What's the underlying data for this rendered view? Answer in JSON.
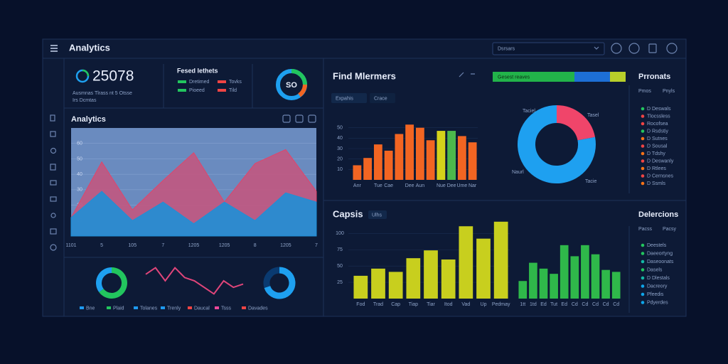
{
  "header": {
    "title": "Analytics",
    "search": "Dsrsars"
  },
  "kpi": {
    "value": "25078",
    "caption": "Ausmnas Tlrass nt 5 Otsse",
    "caption2": "Irs Dcmtas"
  },
  "summary": {
    "title": "Fesed lethets",
    "ring_label": "SO",
    "items": [
      {
        "label": "Dretimed",
        "color": "#22c55e"
      },
      {
        "label": "Tovks",
        "color": "#ef4444"
      },
      {
        "label": "Pioeed",
        "color": "#22c55e"
      },
      {
        "label": "Tild",
        "color": "#ef4444"
      }
    ]
  },
  "tabs": {
    "orange": [
      "Expahis",
      "Crace"
    ],
    "yellow": [
      "Ulhs"
    ],
    "progress": "Gesest reaves"
  },
  "lists": [
    {
      "title": "Prronats",
      "head": [
        "Pmos",
        "Pnyls"
      ],
      "items": [
        {
          "label": "D Deswals",
          "color": "#22c55e"
        },
        {
          "label": "Tlocssless",
          "color": "#ef4444"
        },
        {
          "label": "Rocofsea",
          "color": "#ef4444"
        },
        {
          "label": "D Rsdstiy",
          "color": "#22c55e"
        },
        {
          "label": "D Sutnes",
          "color": "#f97316"
        },
        {
          "label": "D Sousal",
          "color": "#ef4444"
        },
        {
          "label": "D Tdshy",
          "color": "#f97316"
        },
        {
          "label": "D Deswanly",
          "color": "#ef4444"
        },
        {
          "label": "D Rtlees",
          "color": "#f97316"
        },
        {
          "label": "D Cernsnes",
          "color": "#ef4444"
        },
        {
          "label": "D Ssmls",
          "color": "#f97316"
        }
      ]
    },
    {
      "title": "Delercions",
      "head": [
        "Pacss",
        "Pacsy"
      ],
      "items": [
        {
          "label": "Deestels",
          "color": "#22c55e"
        },
        {
          "label": "Daeeortyng",
          "color": "#22c55e"
        },
        {
          "label": "Daseoonats",
          "color": "#14b8a6"
        },
        {
          "label": "Dasels",
          "color": "#22c55e"
        },
        {
          "label": "D Dlestals",
          "color": "#14b8a6"
        },
        {
          "label": "Dacreory",
          "color": "#0ea5e9"
        },
        {
          "label": "Pfeedis",
          "color": "#0ea5e9"
        },
        {
          "label": "Pdyerdes",
          "color": "#0ea5e9"
        }
      ]
    }
  ],
  "mini_legend": [
    {
      "label": "Bne",
      "color": "#1e9af0"
    },
    {
      "label": "Plaid",
      "color": "#22c55e"
    },
    {
      "label": "Tolanes",
      "color": "#1e9af0"
    },
    {
      "label": "Trenly",
      "color": "#1e9af0"
    },
    {
      "label": "Daucal",
      "color": "#ef4444"
    },
    {
      "label": "Tsss",
      "color": "#ec4899"
    },
    {
      "label": "Davades",
      "color": "#ef4444"
    }
  ],
  "chart_data": [
    {
      "type": "area",
      "title": "Analytics",
      "categories": [
        "1101",
        "5",
        "105",
        "7",
        "1205",
        "1205",
        "8",
        "1205",
        "7"
      ],
      "series": [
        {
          "color": "#c2577f",
          "values": [
            12,
            48,
            17,
            36,
            54,
            22,
            47,
            56,
            29
          ]
        },
        {
          "color": "#1f8fd6",
          "values": [
            12,
            29,
            10,
            22,
            8,
            22,
            10,
            28,
            22
          ]
        }
      ],
      "ylim": [
        0,
        70
      ],
      "yticks": [
        10,
        20,
        30,
        40,
        50,
        60
      ]
    },
    {
      "type": "bar",
      "title": "Find Mlermers",
      "categories": [
        "Anr",
        null,
        "Tue",
        "Cae",
        null,
        "Dee",
        "Aun",
        null,
        "Nue",
        "Dee",
        "Ume",
        "Nar"
      ],
      "values": [
        14,
        21,
        34,
        28,
        44,
        53,
        50,
        38,
        47,
        47,
        42,
        36
      ],
      "colors": [
        "#f26522",
        "#f26522",
        "#f26522",
        "#f26522",
        "#f26522",
        "#f26522",
        "#f26522",
        "#f26522",
        "#d4d21a",
        "#4cb84c",
        "#f26522",
        "#f26522"
      ],
      "ylim": [
        0,
        60
      ],
      "yticks": [
        10,
        20,
        30,
        40,
        50
      ]
    },
    {
      "type": "pie",
      "values": [
        22,
        78
      ],
      "colors": [
        "#f0456a",
        "#1ea0f0"
      ],
      "annotations": [
        "Taciel",
        "Tasel",
        "Naurl",
        "Tacie"
      ]
    },
    {
      "type": "bar",
      "title": "Capsis",
      "categories": [
        "Fod",
        "Trad",
        "Cap",
        "Tiap",
        "Tiar",
        "Itod",
        "Vad",
        "Up",
        "Pedmay"
      ],
      "values": [
        35,
        46,
        41,
        62,
        74,
        60,
        111,
        92,
        118
      ],
      "color": "#c8cf1e",
      "ylim": [
        0,
        120
      ],
      "yticks": [
        25,
        50,
        75,
        100
      ]
    },
    {
      "type": "bar",
      "categories": [
        "1tt",
        "1td",
        "Ed",
        "Tut",
        "Ed",
        "Cd",
        "Cd",
        "Cd",
        "Cd",
        "Cd"
      ],
      "values": [
        27,
        55,
        46,
        38,
        82,
        65,
        82,
        68,
        44,
        41
      ],
      "color": "#2fb84a",
      "ylim": [
        0,
        120
      ]
    },
    {
      "type": "pie",
      "values": [
        65,
        35
      ],
      "colors": [
        "#22c55e",
        "#1ea0f0"
      ]
    },
    {
      "type": "line",
      "categories": [
        null,
        null,
        null,
        null,
        null,
        null,
        null,
        null,
        null,
        null,
        null
      ],
      "values": [
        7,
        9,
        5,
        9,
        6,
        5,
        3,
        1,
        5,
        3,
        4
      ],
      "color": "#e0457a",
      "ylim": [
        0,
        10
      ]
    },
    {
      "type": "pie",
      "values": [
        70,
        30
      ],
      "colors": [
        "#1ea0f0",
        "#0a3a70"
      ]
    }
  ]
}
